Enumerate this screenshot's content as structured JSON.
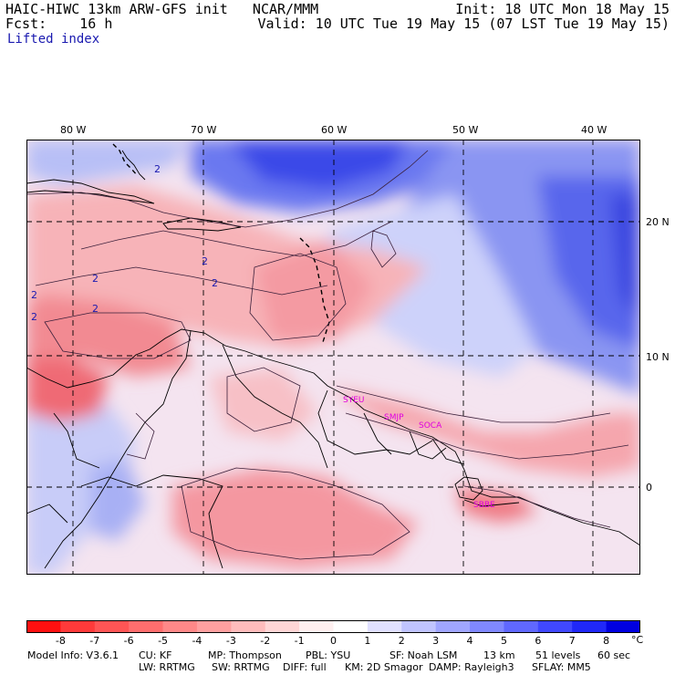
{
  "header": {
    "left_line1": "HAIC-HIWC 13km ARW-GFS init   NCAR/MMM",
    "left_line2": "Fcst:    16 h",
    "field_name": "Lifted index",
    "right_line1": "Init: 18 UTC Mon 18 May 15",
    "right_line2": "Valid: 10 UTC Tue 19 May 15 (07 LST Tue 19 May 15)"
  },
  "map": {
    "lon_ticks": [
      "80 W",
      "70 W",
      "60 W",
      "50 W",
      "40 W"
    ],
    "lat_ticks": [
      "20 N",
      "10 N",
      "0"
    ],
    "contour_labels": [
      "2",
      "2",
      "2",
      "2",
      "2",
      "2",
      "2"
    ],
    "stations": [
      "SYEU",
      "SMJP",
      "SOCA",
      "SBBE"
    ],
    "station_color": "#e000e0"
  },
  "colorbar": {
    "labels": [
      "-8",
      "-7",
      "-6",
      "-5",
      "-4",
      "-3",
      "-2",
      "-1",
      "0",
      "1",
      "2",
      "3",
      "4",
      "5",
      "6",
      "7",
      "8"
    ],
    "unit": "°C",
    "colors": [
      "#ff1010",
      "#ff3a3a",
      "#ff5555",
      "#ff6e6e",
      "#ff8888",
      "#ffa0a0",
      "#ffbcbc",
      "#ffd6d6",
      "#fff0f0",
      "#ffffff",
      "#e0e0ff",
      "#c0c4ff",
      "#a0a6ff",
      "#8088ff",
      "#6068ff",
      "#4048ff",
      "#2028f8",
      "#0000e0"
    ]
  },
  "footer": {
    "line1": [
      "Model Info: V3.6.1",
      "CU: KF",
      "MP: Thompson",
      "PBL: YSU",
      "SF: Noah LSM",
      "13 km",
      "51 levels",
      "60 sec"
    ],
    "line2": [
      "LW: RRTMG",
      "SW: RRTMG",
      "DIFF: full",
      "KM: 2D Smagor",
      "DAMP: Rayleigh3",
      "SFLAY: MM5"
    ]
  }
}
